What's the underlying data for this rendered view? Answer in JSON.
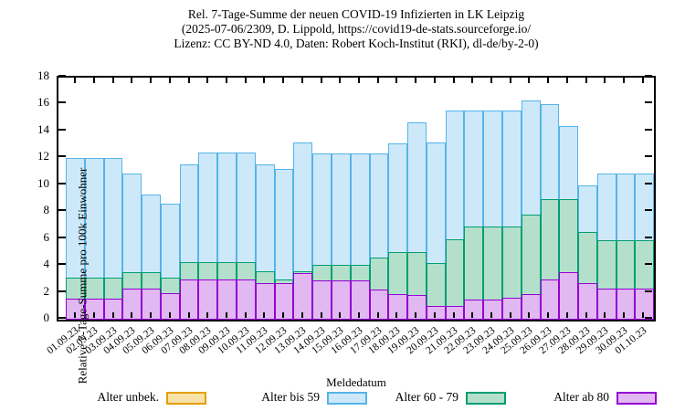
{
  "title": {
    "lines": [
      "Rel. 7-Tage-Summe der neuen COVID-19 Infizierten in LK Leipzig",
      "(2025-07-06/2309, D. Lippold, https://covid19-de-stats.sourceforge.io/",
      "Lizenz: CC BY-ND 4.0, Daten: Robert Koch-Institut (RKI), dl-de/by-2-0)"
    ]
  },
  "y_axis": {
    "label": "Relative 7-Tage-Summe pro 100k Einwohner",
    "min": 0,
    "max": 18,
    "tick_step": 2,
    "tick_labels": [
      "0",
      "2",
      "4",
      "6",
      "8",
      "10",
      "12",
      "14",
      "16",
      "18"
    ]
  },
  "x_axis": {
    "label": "Meldedatum"
  },
  "legend": {
    "entries": [
      {
        "label": "Alter unbek.",
        "fill": "#f8e2a8",
        "edge": "#e69f00"
      },
      {
        "label": "Alter bis 59",
        "fill": "#cde9f9",
        "edge": "#56b4e9"
      },
      {
        "label": "Alter 60 - 79",
        "fill": "#b4e0cb",
        "edge": "#009e73"
      },
      {
        "label": "Alter ab 80",
        "fill": "#e1b8f1",
        "edge": "#9400d3"
      }
    ]
  },
  "chart_data": {
    "type": "bar",
    "title": "Rel. 7-Tage-Summe der neuen COVID-19 Infizierten in LK Leipzig",
    "xlabel": "Meldedatum",
    "ylabel": "Relative 7-Tage-Summe pro 100k Einwohner",
    "ylim": [
      0,
      18
    ],
    "grid": false,
    "legend_position": "bottom",
    "stacking": "overlaid-cumulative: each series bar is drawn from 0, values are the visible top edge of each colored layer",
    "categories": [
      "01.09.23",
      "02.09.23",
      "03.09.23",
      "04.09.23",
      "05.09.23",
      "06.09.23",
      "07.09.23",
      "08.09.23",
      "09.09.23",
      "10.09.23",
      "11.09.23",
      "12.09.23",
      "13.09.23",
      "14.09.23",
      "15.09.23",
      "16.09.23",
      "17.09.23",
      "18.09.23",
      "19.09.23",
      "20.09.23",
      "21.09.23",
      "22.09.23",
      "23.09.23",
      "24.09.23",
      "25.09.23",
      "26.09.23",
      "27.09.23",
      "28.09.23",
      "29.09.23",
      "30.09.23",
      "01.10.23"
    ],
    "series": [
      {
        "name": "Alter bis 59",
        "color_fill": "#cde9f9",
        "color_edge": "#56b4e9",
        "values": [
          12.0,
          12.0,
          12.0,
          10.85,
          9.3,
          8.6,
          11.55,
          12.4,
          12.4,
          12.4,
          11.55,
          11.2,
          13.2,
          12.35,
          12.35,
          12.35,
          12.35,
          13.1,
          14.7,
          13.2,
          15.55,
          15.55,
          15.55,
          15.55,
          16.3,
          16.0,
          14.4,
          10.0,
          10.85,
          10.85,
          10.85
        ]
      },
      {
        "name": "Alter 60 - 79",
        "color_fill": "#b4e0cb",
        "color_edge": "#009e73",
        "values": [
          3.1,
          3.1,
          3.1,
          3.5,
          3.5,
          3.1,
          4.3,
          4.3,
          4.3,
          4.3,
          3.6,
          3.0,
          3.6,
          4.05,
          4.05,
          4.05,
          4.6,
          5.0,
          5.0,
          4.2,
          6.0,
          6.9,
          6.9,
          6.9,
          7.8,
          9.0,
          9.0,
          6.5,
          5.9,
          5.9,
          5.9
        ]
      },
      {
        "name": "Alter ab 80",
        "color_fill": "#e1b8f1",
        "color_edge": "#9400d3",
        "values": [
          1.55,
          1.55,
          1.55,
          2.3,
          2.3,
          1.95,
          3.0,
          3.0,
          3.0,
          3.0,
          2.7,
          2.7,
          3.45,
          2.9,
          2.9,
          2.9,
          2.25,
          1.9,
          1.85,
          1.0,
          1.0,
          1.5,
          1.5,
          1.6,
          1.9,
          3.0,
          3.5,
          2.7,
          2.3,
          2.3,
          2.3
        ]
      },
      {
        "name": "Alter unbek.",
        "color_fill": "#f8e2a8",
        "color_edge": "#e69f00",
        "values": [
          0,
          0,
          0,
          0,
          0,
          0,
          0,
          0,
          0,
          0,
          0,
          0,
          0,
          0,
          0,
          0,
          0,
          0,
          0,
          0,
          0,
          0,
          0,
          0,
          0,
          0,
          0,
          0,
          0,
          0,
          0
        ]
      }
    ]
  }
}
